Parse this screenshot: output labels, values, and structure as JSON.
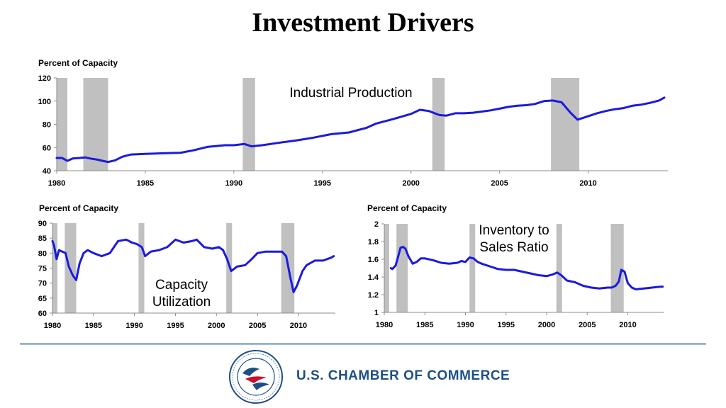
{
  "title": "Investment Drivers",
  "colors": {
    "line": "#1a1adf",
    "recession": "#c0c0c0",
    "axis": "#8c8c8c",
    "brand": "#1d4f86"
  },
  "brand": {
    "name": "U.S. CHAMBER OF COMMERCE",
    "seal_text": "THE SPIRIT OF ENTERPRISE • U.S. CHAMBER OF COMMERCE"
  },
  "chart_data": [
    {
      "type": "line",
      "ylabel": "Percent of Capacity",
      "annotation": [
        "Industrial Production"
      ],
      "xlim": [
        1980,
        2014.5
      ],
      "ylim": [
        40,
        120
      ],
      "yticks": [
        40,
        60,
        80,
        100,
        120
      ],
      "xticks": [
        1980,
        1985,
        1990,
        1995,
        2000,
        2005,
        2010
      ],
      "recessions": [
        [
          1980.0,
          1980.6
        ],
        [
          1981.5,
          1982.9
        ],
        [
          1990.5,
          1991.2
        ],
        [
          2001.2,
          2001.9
        ],
        [
          2007.9,
          2009.5
        ]
      ],
      "series": [
        {
          "x": [
            1980.0,
            1980.3,
            1980.6,
            1980.9,
            1981.3,
            1981.6,
            1981.9,
            1982.3,
            1982.6,
            1982.9,
            1983.3,
            1983.7,
            1984.2,
            1985.0,
            1986.0,
            1987.0,
            1987.7,
            1988.5,
            1989.5,
            1990.0,
            1990.6,
            1991.0,
            1991.6,
            1992.5,
            1993.5,
            1994.5,
            1995.5,
            1996.5,
            1997.5,
            1998.0,
            1999.0,
            2000.0,
            2000.5,
            2001.0,
            2001.6,
            2002.0,
            2002.5,
            2003.0,
            2003.5,
            2004.0,
            2004.5,
            2005.0,
            2005.5,
            2006.0,
            2006.5,
            2007.0,
            2007.5,
            2008.0,
            2008.5,
            2009.0,
            2009.4,
            2009.8,
            2010.5,
            2011.0,
            2011.5,
            2012.0,
            2012.5,
            2013.0,
            2013.5,
            2014.0,
            2014.3
          ],
          "y": [
            51,
            51,
            48.5,
            50.5,
            51,
            51.5,
            50.5,
            49.5,
            48.5,
            47.5,
            49,
            52,
            54,
            54.5,
            55,
            55.5,
            57.5,
            60.5,
            62,
            62,
            63,
            61,
            62,
            64,
            66,
            68.5,
            71.5,
            73,
            77,
            80.5,
            84.5,
            89,
            92.5,
            91.5,
            88,
            87.5,
            89.5,
            89.5,
            90,
            91,
            92,
            93.5,
            95,
            96,
            96.5,
            97.5,
            100,
            100.5,
            99,
            90,
            84,
            86,
            89.5,
            91.5,
            93,
            94,
            96,
            97,
            98.5,
            100.5,
            103
          ]
        }
      ]
    },
    {
      "type": "line",
      "ylabel": "Percent of Capacity",
      "annotation": [
        "Capacity",
        "Utilization"
      ],
      "xlim": [
        1980,
        2014.5
      ],
      "ylim": [
        60,
        90
      ],
      "yticks": [
        60,
        65,
        70,
        75,
        80,
        85,
        90
      ],
      "xticks": [
        1980,
        1985,
        1990,
        1995,
        2000,
        2005,
        2010
      ],
      "recessions": [
        [
          1980.0,
          1980.6
        ],
        [
          1981.5,
          1982.9
        ],
        [
          1990.5,
          1991.2
        ],
        [
          2001.2,
          2001.9
        ],
        [
          2007.9,
          2009.5
        ]
      ],
      "series": [
        {
          "x": [
            1980.0,
            1980.2,
            1980.5,
            1980.8,
            1981.2,
            1981.6,
            1982.0,
            1982.5,
            1982.9,
            1983.3,
            1983.8,
            1984.3,
            1985.0,
            1986.0,
            1987.0,
            1988.0,
            1989.0,
            1989.7,
            1990.3,
            1990.9,
            1991.3,
            1992.0,
            1993.0,
            1994.0,
            1995.0,
            1996.0,
            1997.0,
            1997.6,
            1998.5,
            1999.5,
            2000.3,
            2000.8,
            2001.3,
            2001.8,
            2002.5,
            2003.5,
            2004.3,
            2005.0,
            2006.0,
            2007.0,
            2008.0,
            2008.5,
            2009.0,
            2009.4,
            2009.8,
            2010.5,
            2011.0,
            2012.0,
            2013.0,
            2014.0,
            2014.3
          ],
          "y": [
            84,
            82.5,
            78,
            81,
            80.5,
            80,
            75.5,
            72.5,
            71,
            76.5,
            80,
            81,
            80,
            79,
            80,
            84,
            84.5,
            83.5,
            83,
            82,
            79,
            80.5,
            81,
            82,
            84.5,
            83.5,
            84,
            84.5,
            82,
            81.5,
            82,
            81,
            78,
            74,
            75.5,
            76,
            78,
            80,
            80.5,
            80.5,
            80.5,
            79,
            72,
            67,
            69,
            74,
            76,
            77.5,
            77.5,
            78.5,
            79
          ]
        }
      ]
    },
    {
      "type": "line",
      "ylabel": "Percent of Capacity",
      "annotation": [
        "Inventory to",
        "Sales Ratio"
      ],
      "xlim": [
        1980,
        2014.5
      ],
      "ylim": [
        1,
        2
      ],
      "yticks": [
        1,
        1.2,
        1.4,
        1.6,
        1.8,
        2
      ],
      "xticks": [
        1980,
        1985,
        1990,
        1995,
        2000,
        2005,
        2010
      ],
      "recessions": [
        [
          1980.0,
          1980.6
        ],
        [
          1981.5,
          1982.9
        ],
        [
          1990.5,
          1991.2
        ],
        [
          2001.2,
          2001.9
        ],
        [
          2007.9,
          2009.5
        ]
      ],
      "series": [
        {
          "x": [
            1980.8,
            1981.0,
            1981.4,
            1981.8,
            1982.0,
            1982.3,
            1982.6,
            1983.0,
            1983.5,
            1984.0,
            1984.5,
            1985.0,
            1986.0,
            1987.0,
            1988.0,
            1989.0,
            1989.5,
            1990.0,
            1990.5,
            1991.0,
            1991.5,
            1992.0,
            1993.0,
            1994.0,
            1995.0,
            1996.0,
            1997.0,
            1998.0,
            1999.0,
            2000.0,
            2000.8,
            2001.3,
            2001.8,
            2002.5,
            2003.5,
            2004.5,
            2005.5,
            2006.5,
            2007.5,
            2008.0,
            2008.5,
            2008.9,
            2009.2,
            2009.6,
            2010.0,
            2010.5,
            2011.0,
            2012.0,
            2013.0,
            2014.0,
            2014.3
          ],
          "y": [
            1.5,
            1.49,
            1.53,
            1.66,
            1.73,
            1.74,
            1.72,
            1.63,
            1.55,
            1.57,
            1.61,
            1.61,
            1.59,
            1.56,
            1.55,
            1.56,
            1.58,
            1.57,
            1.62,
            1.61,
            1.57,
            1.55,
            1.52,
            1.49,
            1.48,
            1.48,
            1.46,
            1.44,
            1.42,
            1.41,
            1.43,
            1.45,
            1.42,
            1.36,
            1.34,
            1.3,
            1.28,
            1.27,
            1.28,
            1.28,
            1.3,
            1.35,
            1.48,
            1.46,
            1.33,
            1.28,
            1.26,
            1.27,
            1.28,
            1.29,
            1.29
          ]
        }
      ]
    }
  ]
}
